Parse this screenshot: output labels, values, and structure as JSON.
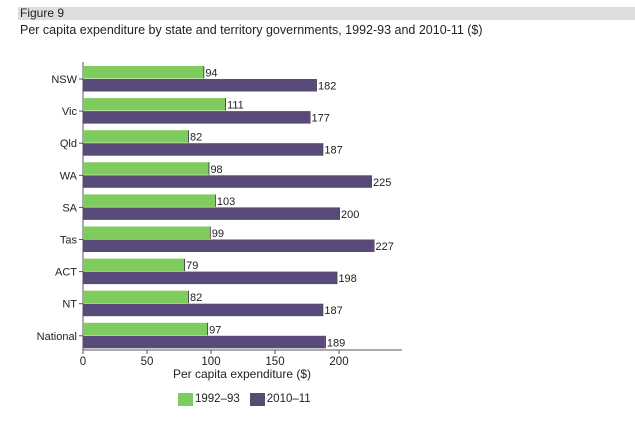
{
  "figure": {
    "label": "Figure 9",
    "title": "Per capita expenditure by state and territory governments, 1992-93 and 2010-11 ($)"
  },
  "colors": {
    "series_1992": "#7ecb5e",
    "series_2010": "#5a4a7a",
    "band": "#dcdee0",
    "axis": "#555555"
  },
  "chart_data": {
    "type": "bar",
    "orientation": "horizontal",
    "title": "Per capita expenditure by state and territory governments, 1992-93 and 2010-11 ($)",
    "xlabel": "Per capita expenditure ($)",
    "ylabel": "",
    "xlim": [
      0,
      250
    ],
    "xticks": [
      0,
      50,
      100,
      150,
      200
    ],
    "categories": [
      "NSW",
      "Vic",
      "Qld",
      "WA",
      "SA",
      "Tas",
      "ACT",
      "NT",
      "National"
    ],
    "series": [
      {
        "name": "1992–93",
        "values": [
          94,
          111,
          82,
          98,
          103,
          99,
          79,
          82,
          97
        ]
      },
      {
        "name": "2010–11",
        "values": [
          182,
          177,
          187,
          225,
          200,
          227,
          198,
          187,
          189
        ]
      }
    ],
    "legend_position": "bottom-left",
    "grid": false
  }
}
